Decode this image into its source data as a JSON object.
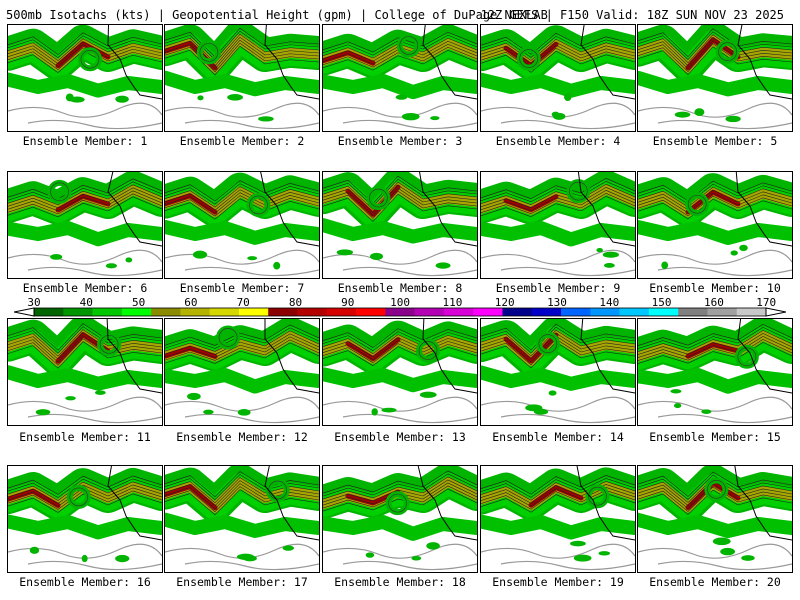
{
  "header": {
    "left": "500mb Isotachs (kts) | Geopotential Height (gpm) | College of DuPage NEXLAB",
    "right": "12Z GEFS | F150 Valid: 18Z SUN NOV 23 2025"
  },
  "panels": [
    {
      "caption": "Ensemble Member: 1"
    },
    {
      "caption": "Ensemble Member: 2"
    },
    {
      "caption": "Ensemble Member: 3"
    },
    {
      "caption": "Ensemble Member: 4"
    },
    {
      "caption": "Ensemble Member: 5"
    },
    {
      "caption": "Ensemble Member: 6"
    },
    {
      "caption": "Ensemble Member: 7"
    },
    {
      "caption": "Ensemble Member: 8"
    },
    {
      "caption": "Ensemble Member: 9"
    },
    {
      "caption": "Ensemble Member: 10"
    },
    {
      "caption": "Ensemble Member: 11"
    },
    {
      "caption": "Ensemble Member: 12"
    },
    {
      "caption": "Ensemble Member: 13"
    },
    {
      "caption": "Ensemble Member: 14"
    },
    {
      "caption": "Ensemble Member: 15"
    },
    {
      "caption": "Ensemble Member: 16"
    },
    {
      "caption": "Ensemble Member: 17"
    },
    {
      "caption": "Ensemble Member: 18"
    },
    {
      "caption": "Ensemble Member: 19"
    },
    {
      "caption": "Ensemble Member: 20"
    }
  ],
  "colorbar": {
    "ticks": [
      "30",
      "40",
      "50",
      "60",
      "70",
      "80",
      "90",
      "100",
      "110",
      "120",
      "130",
      "140",
      "150",
      "160",
      "170"
    ],
    "colors": [
      "#006400",
      "#009600",
      "#00c800",
      "#00ff00",
      "#8b8b00",
      "#b4b400",
      "#d7d700",
      "#ffff00",
      "#8b0000",
      "#b40000",
      "#d70000",
      "#ff0000",
      "#8b008b",
      "#b400b4",
      "#d700d7",
      "#ff00ff",
      "#00008b",
      "#0000c8",
      "#0064ff",
      "#0096ff",
      "#00c8ff",
      "#00ffff",
      "#808080",
      "#a0a0a0",
      "#c8c8c8"
    ]
  }
}
